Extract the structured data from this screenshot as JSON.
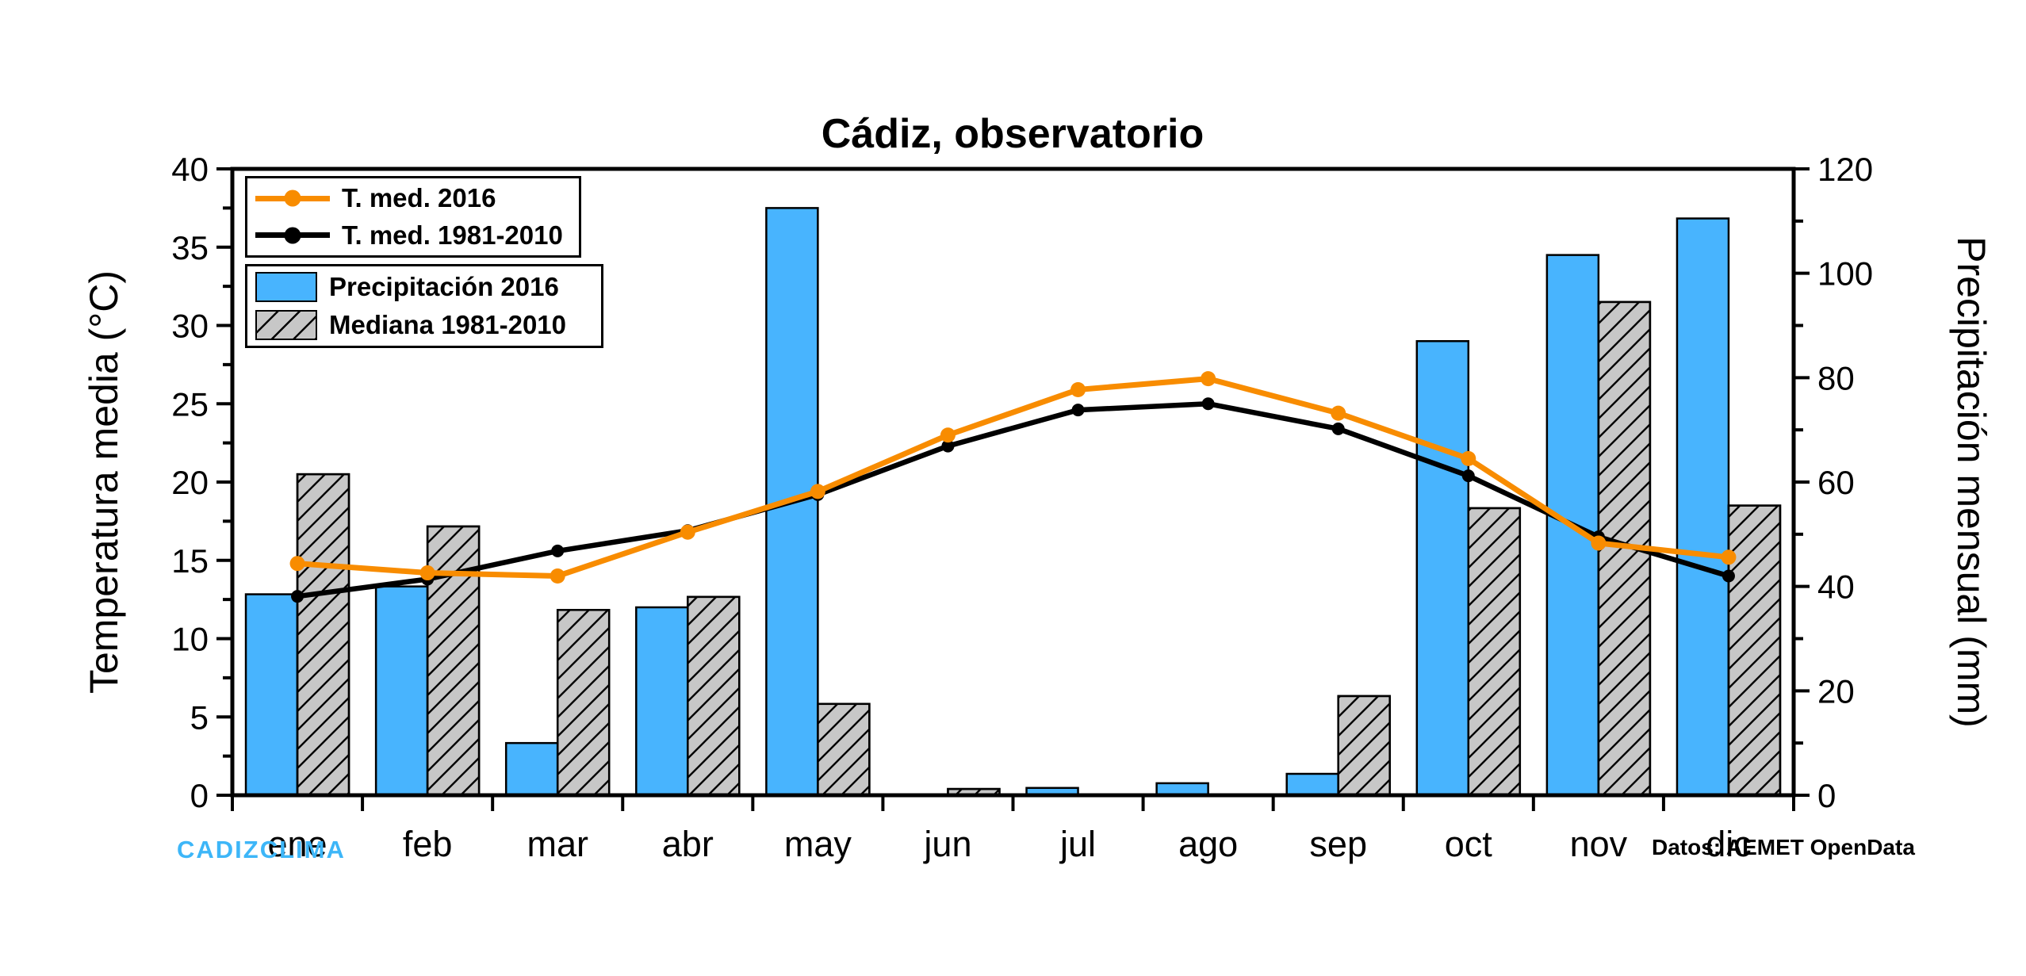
{
  "title": "Cádiz, observatorio",
  "footer": {
    "brand": "CADIZCLIMA",
    "brand_color": "#3DB6F8",
    "source": "Datos: AEMET OpenData"
  },
  "colors": {
    "temp_2016_line": "#F88C00",
    "temp_normal_line": "#000000",
    "precip_2016_bar": "#48B4FE",
    "mediana_bar": "#C7C7C7",
    "axis": "#000000",
    "background": "#FFFFFF"
  },
  "chart_data": {
    "type": "combo-bar-line",
    "title": "Cádiz, observatorio",
    "categories": [
      "ene",
      "feb",
      "mar",
      "abr",
      "may",
      "jun",
      "jul",
      "ago",
      "sep",
      "oct",
      "nov",
      "dic"
    ],
    "series": [
      {
        "name": "T. med. 2016",
        "type": "line",
        "axis": "left",
        "color": "#F88C00",
        "values": [
          14.8,
          14.2,
          14.0,
          16.8,
          19.4,
          23.0,
          25.9,
          26.6,
          24.4,
          21.5,
          16.1,
          15.2
        ]
      },
      {
        "name": "T. med. 1981-2010",
        "type": "line",
        "axis": "left",
        "color": "#000000",
        "values": [
          12.7,
          13.8,
          15.6,
          16.9,
          19.2,
          22.3,
          24.6,
          25.0,
          23.4,
          20.4,
          16.5,
          14.0
        ]
      },
      {
        "name": "Precipitación 2016",
        "type": "bar",
        "axis": "right",
        "color": "#48B4FE",
        "values": [
          38.5,
          40.0,
          10.0,
          36.0,
          112.5,
          0,
          1.4,
          2.3,
          4.1,
          87.0,
          103.5,
          110.5
        ]
      },
      {
        "name": "Mediana 1981-2010",
        "type": "bar",
        "axis": "right",
        "color": "#C7C7C7",
        "hatch": true,
        "values": [
          61.5,
          51.5,
          35.5,
          38.0,
          17.5,
          1.2,
          0,
          0,
          19.0,
          55.0,
          94.5,
          55.5
        ]
      }
    ],
    "y_left": {
      "label": "Temperatura media (°C)",
      "min": 0,
      "max": 40,
      "ticks": [
        0,
        5,
        10,
        15,
        20,
        25,
        30,
        35,
        40
      ],
      "minor_step": 2.5
    },
    "y_right": {
      "label": "Precipitación mensual (mm)",
      "min": 0,
      "max": 120,
      "ticks": [
        0,
        20,
        40,
        60,
        80,
        100,
        120
      ],
      "minor_step": 10
    },
    "grid": false,
    "legend_position": "top-left-inside"
  }
}
